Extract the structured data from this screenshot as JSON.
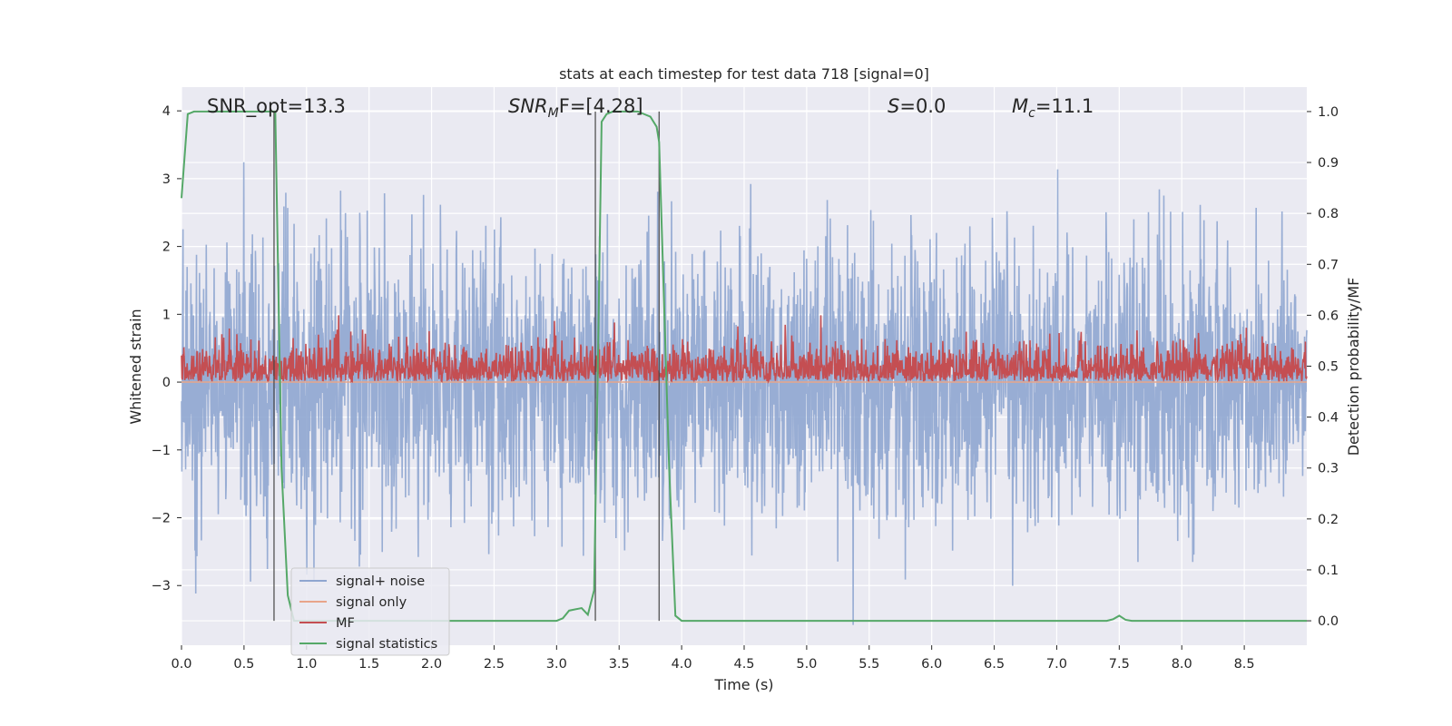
{
  "chart_data": {
    "type": "line",
    "title": "stats at each timestep for test data 718 [signal=0]",
    "xlabel": "Time (s)",
    "ylabel_left": "Whitened strain",
    "ylabel_right": "Detection probability/MF",
    "xlim": [
      0.0,
      9.0
    ],
    "ylim_left": [
      -3.88,
      4.35
    ],
    "ylim_right": [
      -0.048,
      1.048
    ],
    "x_ticks": [
      "0.0",
      "0.5",
      "1.0",
      "1.5",
      "2.0",
      "2.5",
      "3.0",
      "3.5",
      "4.0",
      "4.5",
      "5.0",
      "5.5",
      "6.0",
      "6.5",
      "7.0",
      "7.5",
      "8.0",
      "8.5"
    ],
    "y_left_ticks": [
      "−3",
      "−2",
      "−1",
      "0",
      "1",
      "2",
      "3",
      "4"
    ],
    "y_right_ticks": [
      "0.0",
      "0.1",
      "0.2",
      "0.3",
      "0.4",
      "0.5",
      "0.6",
      "0.7",
      "0.8",
      "0.9",
      "1.0"
    ],
    "grid": true,
    "legend_position": "lower-left",
    "annotations": {
      "snr_opt": "SNR_opt=13.3",
      "snr_mf_main": "SNR",
      "snr_mf_sub": "M",
      "snr_mf_tail": "F=[4.28]",
      "s_main": "S",
      "s_tail": "=0.0",
      "mc_main": "M",
      "mc_sub": "c",
      "mc_tail": "=11.1"
    },
    "vertical_markers_x": [
      0.74,
      3.31,
      3.82
    ],
    "series": [
      {
        "name": "signal+ noise",
        "color": "#8fa6d0",
        "axis": "left",
        "description_values": {
          "mean": 0.0,
          "std": 1.0
        }
      },
      {
        "name": "signal only",
        "color": "#e8a58a",
        "axis": "left",
        "values_constant": 0.0
      },
      {
        "name": "MF",
        "color": "#c44e52",
        "axis": "right",
        "description_values": {
          "baseline": 0.5,
          "peak": 0.6
        }
      },
      {
        "name": "signal statistics",
        "color": "#55a868",
        "axis": "right",
        "x": [
          0.0,
          0.05,
          0.1,
          0.2,
          0.3,
          0.4,
          0.5,
          0.6,
          0.7,
          0.72,
          0.75,
          0.8,
          0.85,
          0.9,
          1.0,
          1.5,
          2.0,
          2.5,
          3.0,
          3.05,
          3.1,
          3.2,
          3.25,
          3.3,
          3.33,
          3.36,
          3.4,
          3.45,
          3.5,
          3.55,
          3.6,
          3.65,
          3.7,
          3.75,
          3.8,
          3.82,
          3.85,
          3.9,
          3.95,
          4.0,
          4.5,
          5.0,
          5.5,
          6.0,
          6.5,
          7.0,
          7.3,
          7.4,
          7.45,
          7.5,
          7.55,
          7.6,
          8.0,
          8.5,
          9.0
        ],
        "y": [
          0.83,
          0.995,
          1.0,
          1.0,
          1.0,
          1.0,
          1.0,
          1.0,
          1.0,
          1.0,
          1.0,
          0.3,
          0.05,
          0.0,
          0.0,
          0.0,
          0.0,
          0.0,
          0.0,
          0.005,
          0.02,
          0.025,
          0.012,
          0.06,
          0.5,
          0.98,
          0.995,
          1.0,
          1.0,
          1.0,
          1.0,
          1.0,
          0.995,
          0.99,
          0.97,
          0.94,
          0.7,
          0.3,
          0.01,
          0.0,
          0.0,
          0.0,
          0.0,
          0.0,
          0.0,
          0.0,
          0.0,
          0.0,
          0.003,
          0.01,
          0.002,
          0.0,
          0.0,
          0.0,
          0.0
        ]
      }
    ]
  }
}
